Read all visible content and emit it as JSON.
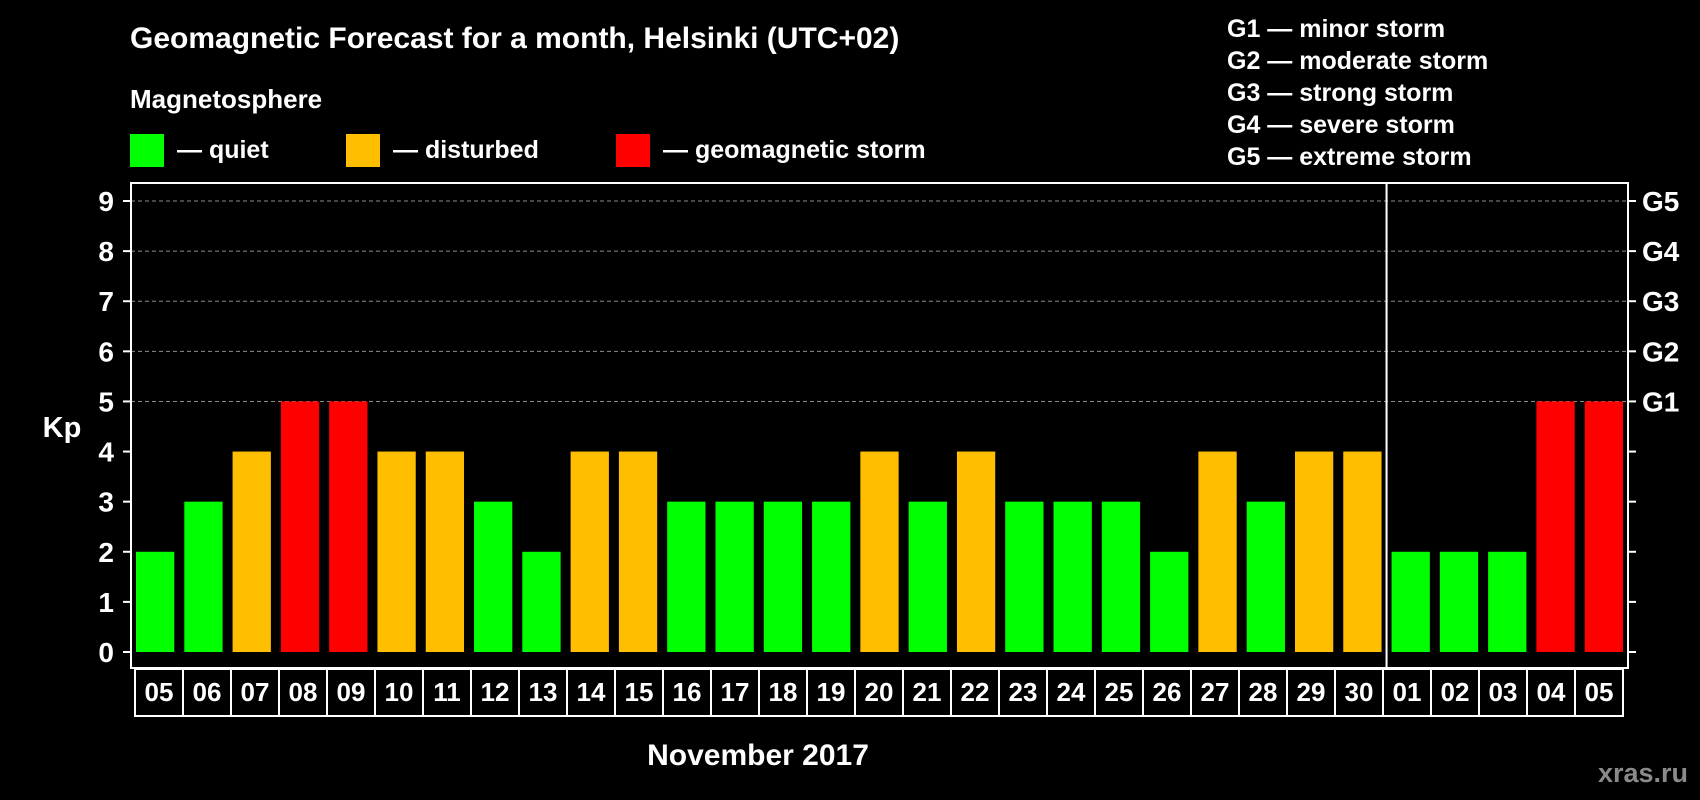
{
  "chart_data": {
    "type": "bar",
    "title": "Geomagnetic Forecast for a month, Helsinki (UTC+02)",
    "legend_title": "Magnetosphere",
    "legend": [
      {
        "key": "quiet",
        "label": "— quiet",
        "color": "#00ff00"
      },
      {
        "key": "disturbed",
        "label": "— disturbed",
        "color": "#ffbf00"
      },
      {
        "key": "storm",
        "label": "— geomagnetic storm",
        "color": "#ff0000"
      }
    ],
    "storm_scale": [
      "G1 — minor storm",
      "G2 — moderate storm",
      "G3 — strong storm",
      "G4 — severe storm",
      "G5 — extreme storm"
    ],
    "ylabel": "Kp",
    "xlabel": "November 2017",
    "ylim": [
      0,
      9
    ],
    "yticks": [
      0,
      1,
      2,
      3,
      4,
      5,
      6,
      7,
      8,
      9
    ],
    "right_ticks": [
      {
        "value": 5,
        "label": "G1"
      },
      {
        "value": 6,
        "label": "G2"
      },
      {
        "value": 7,
        "label": "G3"
      },
      {
        "value": 8,
        "label": "G4"
      },
      {
        "value": 9,
        "label": "G5"
      }
    ],
    "gridlines": [
      5,
      6,
      7,
      8,
      9
    ],
    "month_break_after_index": 25,
    "categories": [
      "05",
      "06",
      "07",
      "08",
      "09",
      "10",
      "11",
      "12",
      "13",
      "14",
      "15",
      "16",
      "17",
      "18",
      "19",
      "20",
      "21",
      "22",
      "23",
      "24",
      "25",
      "26",
      "27",
      "28",
      "29",
      "30",
      "01",
      "02",
      "03",
      "04",
      "05"
    ],
    "values": [
      2,
      3,
      4,
      5,
      5,
      4,
      4,
      3,
      2,
      4,
      4,
      3,
      3,
      3,
      3,
      4,
      3,
      4,
      3,
      3,
      3,
      2,
      4,
      3,
      4,
      4,
      2,
      2,
      2,
      5,
      5
    ],
    "watermark": "xras.ru"
  }
}
